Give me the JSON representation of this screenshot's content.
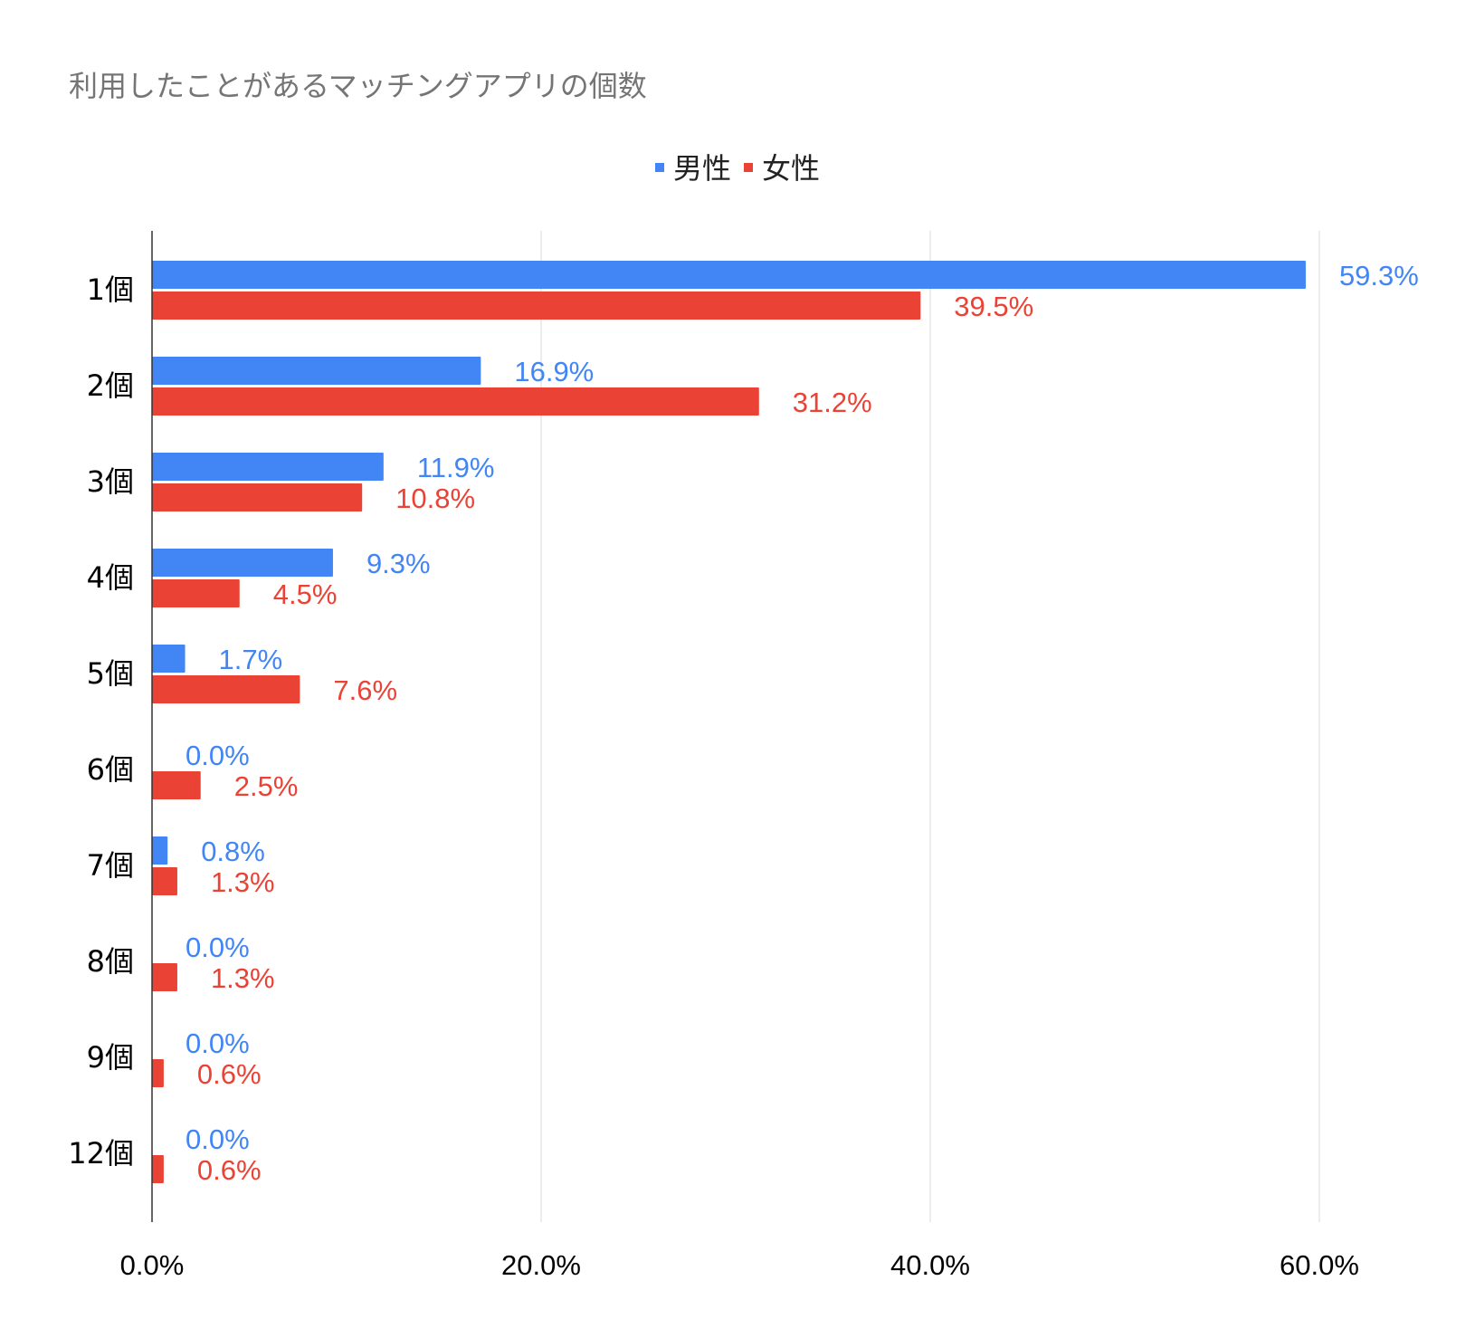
{
  "chart_data": {
    "type": "bar",
    "orientation": "horizontal",
    "title": "利用したことがあるマッチングアプリの個数",
    "categories": [
      "1個",
      "2個",
      "3個",
      "4個",
      "5個",
      "6個",
      "7個",
      "8個",
      "9個",
      "12個"
    ],
    "series": [
      {
        "name": "男性",
        "color": "#4285f4",
        "values": [
          59.3,
          16.9,
          11.9,
          9.3,
          1.7,
          0.0,
          0.8,
          0.0,
          0.0,
          0.0
        ],
        "labels": [
          "59.3%",
          "16.9%",
          "11.9%",
          "9.3%",
          "1.7%",
          "0.0%",
          "0.8%",
          "0.0%",
          "0.0%",
          "0.0%"
        ]
      },
      {
        "name": "女性",
        "color": "#ea4335",
        "values": [
          39.5,
          31.2,
          10.8,
          4.5,
          7.6,
          2.5,
          1.3,
          1.3,
          0.6,
          0.6
        ],
        "labels": [
          "39.5%",
          "31.2%",
          "10.8%",
          "4.5%",
          "7.6%",
          "2.5%",
          "1.3%",
          "1.3%",
          "0.6%",
          "0.6%"
        ]
      }
    ],
    "xlim": [
      0,
      60
    ],
    "x_ticks": [
      0,
      20,
      40,
      60
    ],
    "x_tick_labels": [
      "0.0%",
      "20.0%",
      "40.0%",
      "60.0%"
    ],
    "grid": true,
    "legend_position": "top"
  }
}
